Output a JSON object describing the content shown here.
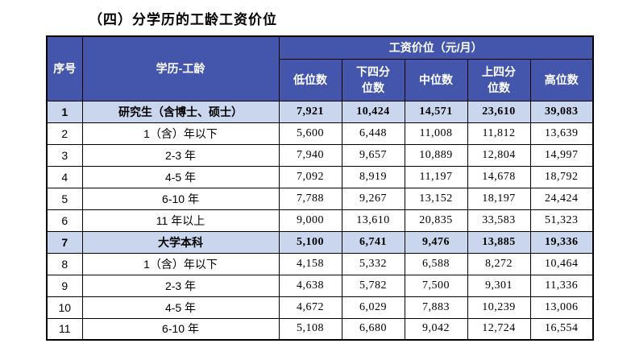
{
  "page": {
    "title": "（四）分学历的工龄工资价位"
  },
  "colors": {
    "header_bg": "#4456ac",
    "header_text": "#ffffff",
    "highlight_row_bg": "#c9d6ee",
    "border": "#000000"
  },
  "table": {
    "header": {
      "no": "序号",
      "category": "学历-工龄",
      "group": "工资价位（元/月）",
      "stats": [
        "低位数",
        "下四分\n位数",
        "中位数",
        "上四分\n位数",
        "高位数"
      ]
    },
    "rows": [
      {
        "no": "1",
        "label": "研究生（含博士、硕士）",
        "values": [
          "7,921",
          "10,424",
          "14,571",
          "23,610",
          "39,083"
        ],
        "highlight": true
      },
      {
        "no": "2",
        "label": "1（含）年以下",
        "values": [
          "5,600",
          "6,448",
          "11,008",
          "11,812",
          "13,639"
        ],
        "highlight": false
      },
      {
        "no": "3",
        "label": "2-3 年",
        "values": [
          "7,940",
          "9,657",
          "10,889",
          "12,804",
          "14,997"
        ],
        "highlight": false
      },
      {
        "no": "4",
        "label": "4-5 年",
        "values": [
          "7,092",
          "8,919",
          "11,197",
          "14,678",
          "18,792"
        ],
        "highlight": false
      },
      {
        "no": "5",
        "label": "6-10 年",
        "values": [
          "7,788",
          "9,267",
          "13,152",
          "18,197",
          "24,424"
        ],
        "highlight": false
      },
      {
        "no": "6",
        "label": "11 年以上",
        "values": [
          "9,000",
          "13,610",
          "20,835",
          "33,583",
          "51,323"
        ],
        "highlight": false
      },
      {
        "no": "7",
        "label": "大学本科",
        "values": [
          "5,100",
          "6,741",
          "9,476",
          "13,885",
          "19,336"
        ],
        "highlight": true
      },
      {
        "no": "8",
        "label": "1（含）年以下",
        "values": [
          "4,158",
          "5,332",
          "6,588",
          "8,272",
          "10,464"
        ],
        "highlight": false
      },
      {
        "no": "9",
        "label": "2-3 年",
        "values": [
          "4,638",
          "5,782",
          "7,500",
          "9,301",
          "11,336"
        ],
        "highlight": false
      },
      {
        "no": "10",
        "label": "4-5 年",
        "values": [
          "4,672",
          "6,029",
          "7,883",
          "10,239",
          "13,006"
        ],
        "highlight": false
      },
      {
        "no": "11",
        "label": "6-10 年",
        "values": [
          "5,108",
          "6,680",
          "9,042",
          "12,724",
          "16,554"
        ],
        "highlight": false
      }
    ]
  }
}
